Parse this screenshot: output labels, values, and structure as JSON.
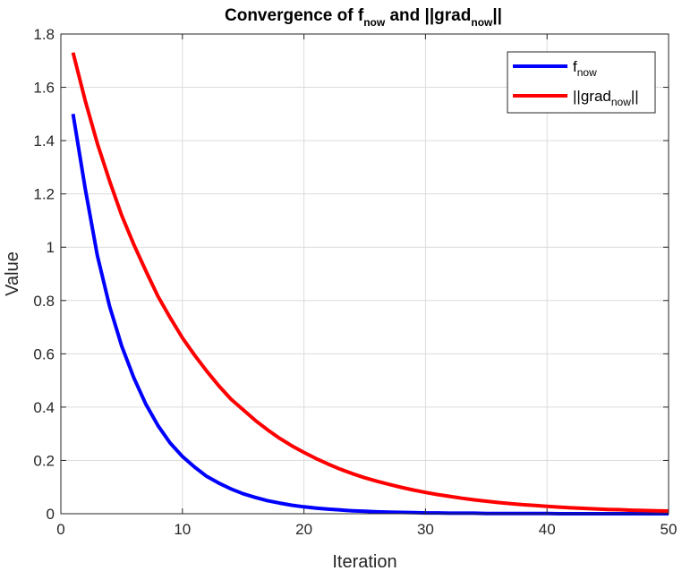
{
  "chart_data": {
    "type": "line",
    "title": {
      "base": "Convergence of ",
      "f": "f",
      "f_sub": "now",
      "and": " and ",
      "grad_open": "||grad",
      "grad_sub": "now",
      "grad_close": "||"
    },
    "xlabel": "Iteration",
    "ylabel": "Value",
    "xlim": [
      0,
      50
    ],
    "ylim": [
      0,
      1.8
    ],
    "xticks": [
      "0",
      "10",
      "20",
      "30",
      "40",
      "50"
    ],
    "yticks": [
      "0",
      "0.2",
      "0.4",
      "0.6",
      "0.8",
      "1",
      "1.2",
      "1.4",
      "1.6",
      "1.8"
    ],
    "grid": true,
    "legend_position": "top-right",
    "series": [
      {
        "name": "f_now",
        "legend": {
          "main": "f",
          "sub": "now",
          "after": ""
        },
        "color": "#0000ff",
        "x": [
          1,
          2,
          3,
          4,
          5,
          6,
          7,
          8,
          9,
          10,
          11,
          12,
          13,
          14,
          15,
          16,
          17,
          18,
          19,
          20,
          21,
          22,
          23,
          24,
          25,
          26,
          27,
          28,
          29,
          30,
          31,
          32,
          33,
          34,
          35,
          36,
          37,
          38,
          39,
          40,
          41,
          42,
          43,
          44,
          45,
          46,
          47,
          48,
          49,
          50
        ],
        "values": [
          1.5,
          1.22,
          0.97,
          0.78,
          0.63,
          0.51,
          0.41,
          0.33,
          0.265,
          0.215,
          0.175,
          0.14,
          0.115,
          0.093,
          0.075,
          0.061,
          0.049,
          0.04,
          0.032,
          0.026,
          0.021,
          0.017,
          0.014,
          0.011,
          0.009,
          0.007,
          0.006,
          0.005,
          0.004,
          0.003,
          0.003,
          0.002,
          0.002,
          0.002,
          0.001,
          0.001,
          0.001,
          0.001,
          0.001,
          0.001,
          0.0,
          0.0,
          0.0,
          0.0,
          0.0,
          0.0,
          0.0,
          0.0,
          0.0,
          0.0
        ]
      },
      {
        "name": "||grad_now||",
        "legend": {
          "main": "||grad",
          "sub": "now",
          "after": "||"
        },
        "color": "#ff0000",
        "x": [
          1,
          2,
          3,
          4,
          5,
          6,
          7,
          8,
          9,
          10,
          11,
          12,
          13,
          14,
          15,
          16,
          17,
          18,
          19,
          20,
          21,
          22,
          23,
          24,
          25,
          26,
          27,
          28,
          29,
          30,
          31,
          32,
          33,
          34,
          35,
          36,
          37,
          38,
          39,
          40,
          41,
          42,
          43,
          44,
          45,
          46,
          47,
          48,
          49,
          50
        ],
        "values": [
          1.73,
          1.55,
          1.39,
          1.25,
          1.12,
          1.01,
          0.91,
          0.815,
          0.735,
          0.66,
          0.595,
          0.535,
          0.48,
          0.43,
          0.39,
          0.35,
          0.315,
          0.283,
          0.255,
          0.23,
          0.207,
          0.186,
          0.167,
          0.15,
          0.135,
          0.122,
          0.11,
          0.099,
          0.089,
          0.08,
          0.072,
          0.065,
          0.058,
          0.052,
          0.047,
          0.042,
          0.038,
          0.034,
          0.031,
          0.028,
          0.025,
          0.022,
          0.02,
          0.018,
          0.016,
          0.015,
          0.013,
          0.012,
          0.011,
          0.01
        ]
      }
    ]
  }
}
